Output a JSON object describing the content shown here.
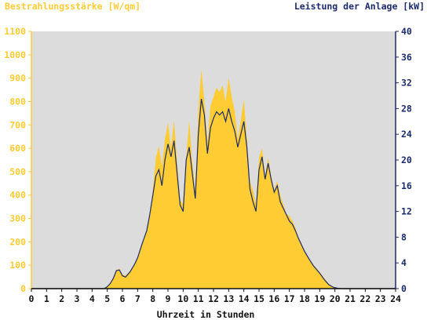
{
  "chart_data": {
    "type": "area",
    "title_left": "Bestrahlungsstärke [W/qm]",
    "title_right": "Leistung der Anlage [kW]",
    "xlabel": "Uhrzeit in Stunden",
    "xlim": [
      0,
      24
    ],
    "x_ticks": [
      "0",
      "1",
      "2",
      "3",
      "4",
      "5",
      "6",
      "7",
      "8",
      "9",
      "10",
      "11",
      "12",
      "13",
      "14",
      "15",
      "16",
      "17",
      "18",
      "19",
      "20",
      "21",
      "22",
      "23",
      "24"
    ],
    "ylim_left": [
      0,
      1100
    ],
    "y_ticks_left": [
      "0",
      "100",
      "200",
      "300",
      "400",
      "500",
      "600",
      "700",
      "800",
      "900",
      "1000",
      "1100"
    ],
    "ylim_right": [
      0,
      40
    ],
    "y_ticks_right": [
      "0",
      "4",
      "8",
      "12",
      "16",
      "20",
      "24",
      "28",
      "32",
      "36",
      "40"
    ],
    "grid": false,
    "colors": {
      "irradiance": "#ffcc33",
      "power": "#1b2a6b",
      "plot_bg": "#dcdcdc",
      "left_axis": "#ffcc33",
      "right_axis": "#1b2a6b"
    },
    "series": [
      {
        "name": "Bestrahlungsstärke",
        "axis": "left",
        "x": [
          0,
          4.8,
          5.0,
          5.2,
          5.4,
          5.6,
          5.8,
          6.0,
          6.2,
          6.5,
          6.8,
          7.0,
          7.3,
          7.6,
          7.8,
          8.0,
          8.2,
          8.4,
          8.6,
          8.8,
          9.0,
          9.2,
          9.4,
          9.6,
          9.8,
          10.0,
          10.2,
          10.4,
          10.6,
          10.8,
          11.0,
          11.2,
          11.4,
          11.6,
          11.8,
          12.0,
          12.2,
          12.4,
          12.6,
          12.8,
          13.0,
          13.2,
          13.4,
          13.6,
          13.8,
          14.0,
          14.2,
          14.4,
          14.6,
          14.8,
          15.0,
          15.2,
          15.4,
          15.6,
          15.8,
          16.0,
          16.2,
          16.4,
          16.6,
          16.8,
          17.0,
          17.2,
          17.4,
          17.6,
          17.8,
          18.0,
          18.3,
          18.6,
          19.0,
          19.3,
          19.6,
          19.9,
          20.2,
          20.5,
          24
        ],
        "y": [
          0,
          0,
          10,
          25,
          50,
          80,
          85,
          60,
          55,
          75,
          105,
          130,
          190,
          250,
          320,
          420,
          560,
          610,
          520,
          640,
          710,
          600,
          720,
          540,
          380,
          360,
          560,
          720,
          540,
          420,
          760,
          940,
          800,
          620,
          780,
          820,
          860,
          840,
          870,
          800,
          900,
          820,
          760,
          640,
          720,
          810,
          640,
          460,
          420,
          360,
          560,
          600,
          480,
          560,
          480,
          420,
          460,
          400,
          360,
          320,
          310,
          290,
          260,
          220,
          190,
          160,
          130,
          100,
          70,
          45,
          20,
          8,
          2,
          0,
          0
        ]
      },
      {
        "name": "Leistung der Anlage",
        "axis": "right",
        "x": [
          0,
          4.8,
          5.0,
          5.2,
          5.4,
          5.6,
          5.8,
          6.0,
          6.2,
          6.5,
          6.8,
          7.0,
          7.3,
          7.6,
          7.8,
          8.0,
          8.2,
          8.4,
          8.6,
          8.8,
          9.0,
          9.2,
          9.4,
          9.6,
          9.8,
          10.0,
          10.2,
          10.4,
          10.6,
          10.8,
          11.0,
          11.2,
          11.4,
          11.6,
          11.8,
          12.0,
          12.2,
          12.4,
          12.6,
          12.8,
          13.0,
          13.2,
          13.4,
          13.6,
          13.8,
          14.0,
          14.2,
          14.4,
          14.6,
          14.8,
          15.0,
          15.2,
          15.4,
          15.6,
          15.8,
          16.0,
          16.2,
          16.4,
          16.6,
          16.8,
          17.0,
          17.2,
          17.4,
          17.6,
          17.8,
          18.0,
          18.3,
          18.6,
          19.0,
          19.3,
          19.6,
          19.9,
          20.2,
          20.5,
          24
        ],
        "y": [
          0,
          0,
          0.3,
          0.8,
          1.6,
          2.8,
          2.9,
          2.0,
          1.8,
          2.6,
          3.8,
          4.8,
          7.0,
          9.0,
          11.5,
          14.5,
          17.5,
          18.5,
          16.0,
          20.0,
          22.5,
          20.5,
          23.0,
          18.0,
          13.0,
          12.0,
          20.0,
          22.0,
          18.0,
          14.0,
          24.0,
          29.5,
          27.0,
          21.0,
          25.0,
          26.5,
          27.5,
          27.0,
          27.5,
          26.0,
          28.0,
          26.0,
          24.5,
          22.0,
          24.0,
          26.0,
          22.0,
          15.5,
          13.5,
          12.0,
          18.5,
          20.5,
          17.0,
          19.5,
          17.0,
          15.0,
          16.0,
          13.5,
          12.5,
          11.5,
          10.5,
          10.0,
          9.0,
          7.8,
          6.8,
          5.8,
          4.6,
          3.5,
          2.4,
          1.4,
          0.6,
          0.2,
          0.05,
          0,
          0
        ]
      }
    ]
  }
}
